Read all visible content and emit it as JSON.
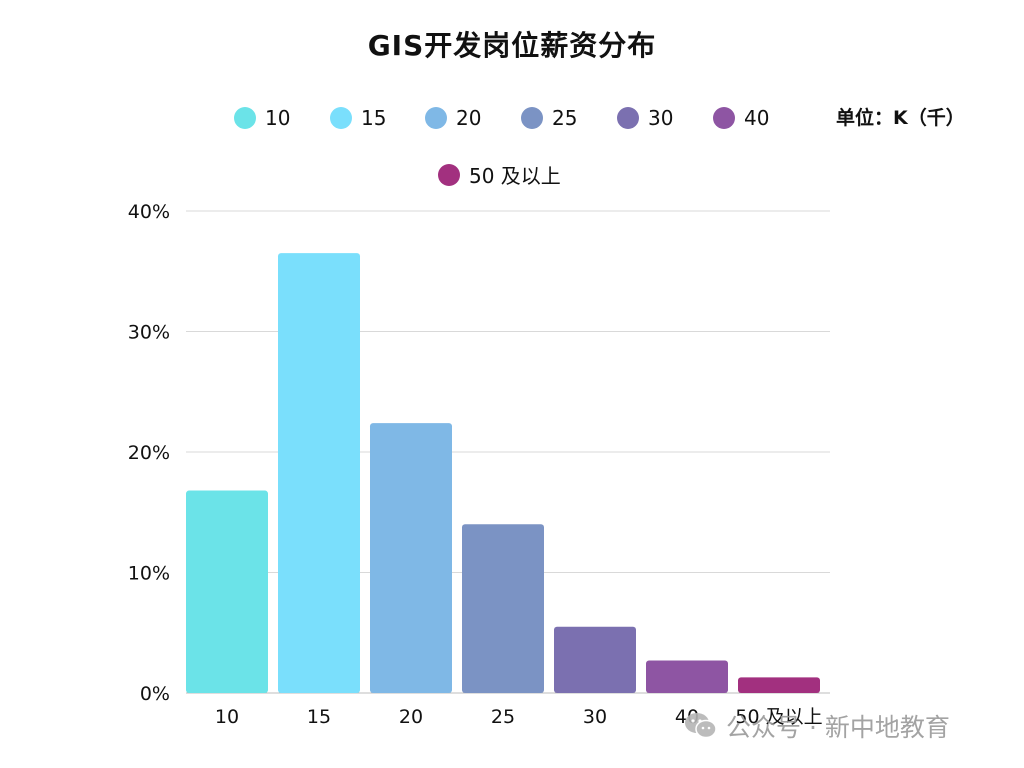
{
  "chart_data": {
    "type": "bar",
    "title": "GIS开发岗位薪资分布",
    "unit_note": "单位：K（千）",
    "categories": [
      "10",
      "15",
      "20",
      "25",
      "30",
      "40",
      "50 及以上"
    ],
    "values": [
      16.8,
      36.5,
      22.4,
      14.0,
      5.5,
      2.7,
      1.3
    ],
    "value_format": "percent",
    "ylim": [
      0,
      40
    ],
    "yticks": [
      "0%",
      "10%",
      "20%",
      "30%",
      "40%"
    ],
    "grid": true,
    "legend_position": "top",
    "colors": [
      "#6BE3E8",
      "#7ADFFC",
      "#7FB8E6",
      "#7B93C4",
      "#7B70B0",
      "#8E55A3",
      "#A2307F"
    ],
    "legend": [
      "10",
      "15",
      "20",
      "25",
      "30",
      "40",
      "50 及以上"
    ]
  },
  "watermark": {
    "text": "公众号 · 新中地教育",
    "icon": "wechat-icon"
  }
}
